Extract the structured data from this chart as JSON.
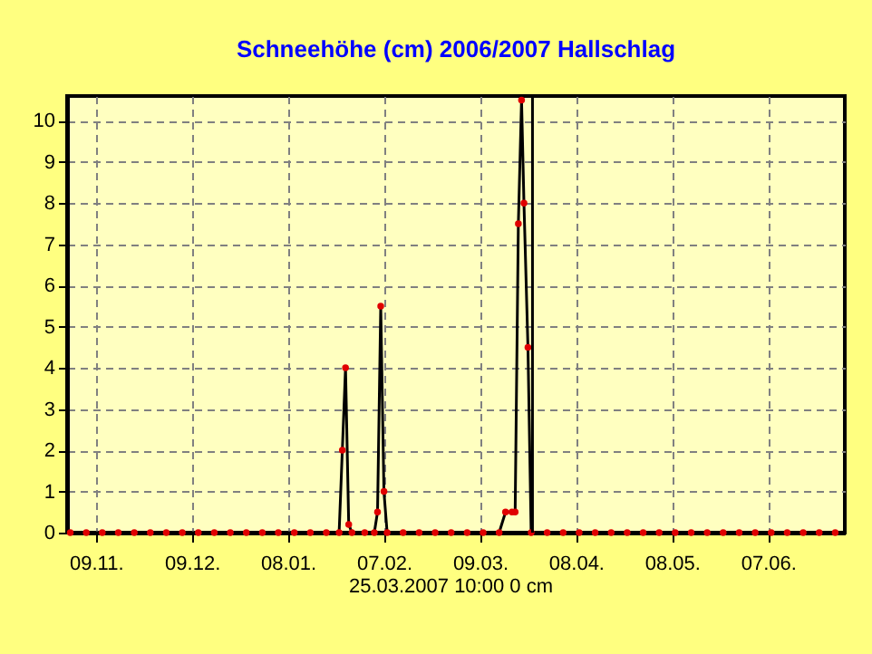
{
  "chart_data": {
    "type": "line",
    "title": "Schneehöhe (cm)  2006/2007      Hallschlag",
    "series": [
      {
        "color": "#000000",
        "x": [
          "2006-11-01",
          "2006-11-06",
          "2006-11-11",
          "2006-11-16",
          "2006-11-21",
          "2006-11-26",
          "2006-12-01",
          "2006-12-06",
          "2006-12-11",
          "2006-12-16",
          "2006-12-21",
          "2006-12-26",
          "2006-12-31",
          "2007-01-05",
          "2007-01-10",
          "2007-01-15",
          "2007-01-20",
          "2007-01-24",
          "2007-01-25",
          "2007-01-26",
          "2007-01-27",
          "2007-01-28",
          "2007-02-01",
          "2007-02-04",
          "2007-02-05",
          "2007-02-06",
          "2007-02-07",
          "2007-02-08",
          "2007-02-13",
          "2007-02-18",
          "2007-02-23",
          "2007-02-28",
          "2007-03-05",
          "2007-03-10",
          "2007-03-15",
          "2007-03-17",
          "2007-03-19",
          "2007-03-20",
          "2007-03-21",
          "2007-03-22",
          "2007-03-22T18:00",
          "2007-03-24",
          "2007-03-25",
          "2007-03-30",
          "2007-04-04",
          "2007-04-09",
          "2007-04-14",
          "2007-04-19",
          "2007-04-24",
          "2007-04-29",
          "2007-05-04",
          "2007-05-09",
          "2007-05-14",
          "2007-05-19",
          "2007-05-24",
          "2007-05-29",
          "2007-06-03",
          "2007-06-08",
          "2007-06-13",
          "2007-06-18",
          "2007-06-23",
          "2007-06-28"
        ],
        "values": [
          0,
          0,
          0,
          0,
          0,
          0,
          0,
          0,
          0,
          0,
          0,
          0,
          0,
          0,
          0,
          0,
          0,
          0,
          2.0,
          4.0,
          0.2,
          0,
          0,
          0,
          0.5,
          5.5,
          1.0,
          0,
          0,
          0,
          0,
          0,
          0,
          0,
          0,
          0.5,
          0.5,
          0.5,
          7.5,
          10.5,
          8.0,
          4.5,
          0,
          0,
          0,
          0,
          0,
          0,
          0,
          0,
          0,
          0,
          0,
          0,
          0,
          0,
          0,
          0,
          0,
          0,
          0,
          0
        ]
      }
    ],
    "xlim": [
      "2006-10-31",
      "2007-07-01"
    ],
    "xticks": [
      {
        "value": "2006-11-09",
        "label": "09.11."
      },
      {
        "value": "2006-12-09",
        "label": "09.12."
      },
      {
        "value": "2007-01-08",
        "label": "08.01."
      },
      {
        "value": "2007-02-07",
        "label": "07.02."
      },
      {
        "value": "2007-03-09",
        "label": "09.03."
      },
      {
        "value": "2007-04-08",
        "label": "08.04."
      },
      {
        "value": "2007-05-08",
        "label": "08.05."
      },
      {
        "value": "2007-06-07",
        "label": "07.06."
      }
    ],
    "ylim": [
      0,
      10.6
    ],
    "yticks": [
      0,
      1,
      2,
      3,
      4,
      5,
      6,
      7,
      8,
      9,
      10
    ],
    "ref_lines": [
      {
        "axis": "x",
        "value": "2007-03-25T10:00",
        "label": "25.03.2007  10:00   0 cm",
        "color": "#000000"
      }
    ],
    "grid": true,
    "marker": "circle",
    "line_style": "solid"
  }
}
